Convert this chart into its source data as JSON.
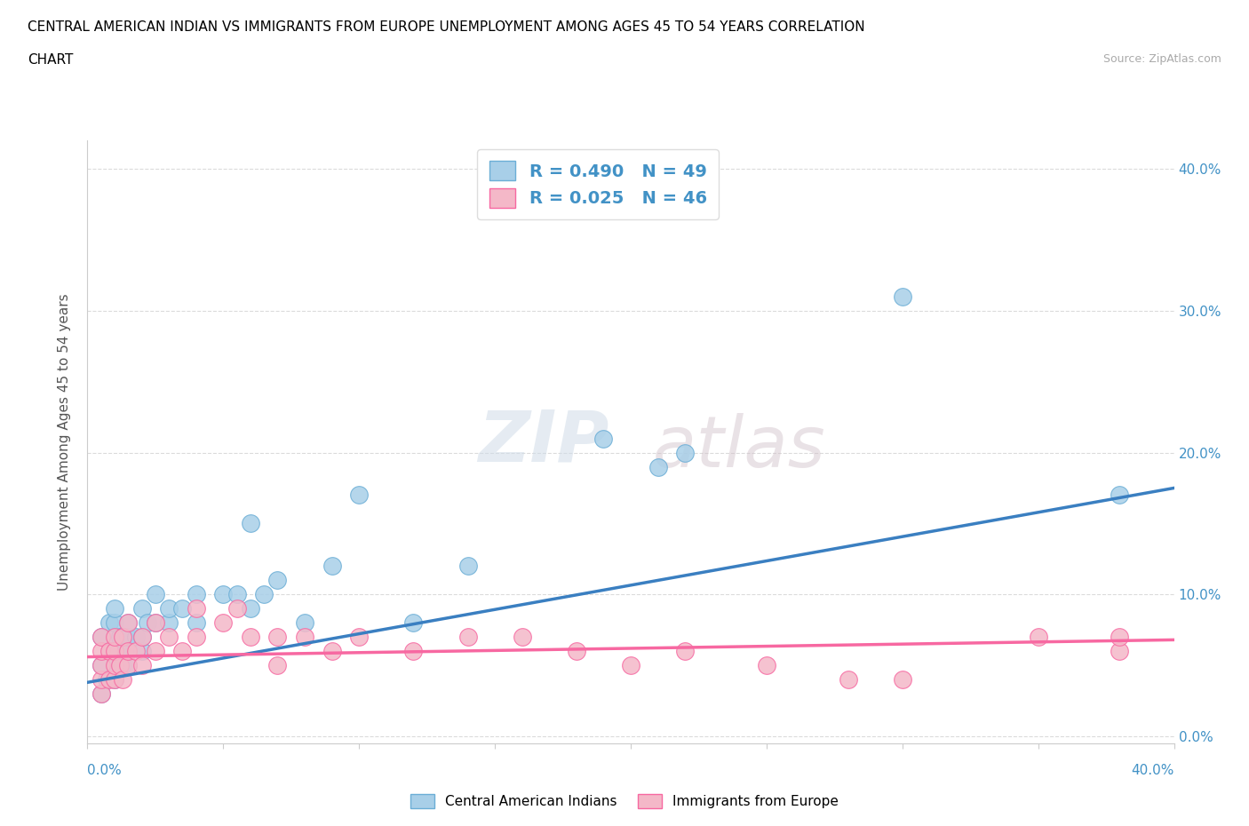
{
  "title_line1": "CENTRAL AMERICAN INDIAN VS IMMIGRANTS FROM EUROPE UNEMPLOYMENT AMONG AGES 45 TO 54 YEARS CORRELATION",
  "title_line2": "CHART",
  "source_text": "Source: ZipAtlas.com",
  "ylabel": "Unemployment Among Ages 45 to 54 years",
  "xlim": [
    0.0,
    0.4
  ],
  "ylim": [
    -0.005,
    0.42
  ],
  "ytick_values": [
    0.0,
    0.1,
    0.2,
    0.3,
    0.4
  ],
  "ytick_labels": [
    "0.0%",
    "10.0%",
    "20.0%",
    "30.0%",
    "40.0%"
  ],
  "watermark_zip": "ZIP",
  "watermark_atlas": "atlas",
  "blue_color": "#a8cfe8",
  "pink_color": "#f4b8c8",
  "blue_edge_color": "#6baed6",
  "pink_edge_color": "#f768a1",
  "blue_line_color": "#3a7fc1",
  "pink_line_color": "#e05a8a",
  "R_blue": 0.49,
  "N_blue": 49,
  "R_pink": 0.025,
  "N_pink": 46,
  "legend_label_blue": "Central American Indians",
  "legend_label_pink": "Immigrants from Europe",
  "blue_scatter_x": [
    0.005,
    0.005,
    0.005,
    0.007,
    0.008,
    0.008,
    0.01,
    0.01,
    0.01,
    0.01,
    0.01,
    0.01,
    0.012,
    0.012,
    0.013,
    0.013,
    0.014,
    0.015,
    0.015,
    0.015,
    0.015,
    0.018,
    0.02,
    0.02,
    0.02,
    0.022,
    0.025,
    0.025,
    0.03,
    0.03,
    0.035,
    0.04,
    0.04,
    0.05,
    0.055,
    0.06,
    0.06,
    0.065,
    0.07,
    0.08,
    0.09,
    0.1,
    0.12,
    0.14,
    0.19,
    0.21,
    0.22,
    0.3,
    0.38
  ],
  "blue_scatter_y": [
    0.03,
    0.05,
    0.07,
    0.04,
    0.06,
    0.08,
    0.04,
    0.05,
    0.06,
    0.07,
    0.08,
    0.09,
    0.05,
    0.07,
    0.05,
    0.07,
    0.06,
    0.05,
    0.06,
    0.07,
    0.08,
    0.07,
    0.06,
    0.07,
    0.09,
    0.08,
    0.08,
    0.1,
    0.08,
    0.09,
    0.09,
    0.08,
    0.1,
    0.1,
    0.1,
    0.09,
    0.15,
    0.1,
    0.11,
    0.08,
    0.12,
    0.17,
    0.08,
    0.12,
    0.21,
    0.19,
    0.2,
    0.31,
    0.17
  ],
  "pink_scatter_x": [
    0.005,
    0.005,
    0.005,
    0.005,
    0.005,
    0.008,
    0.008,
    0.01,
    0.01,
    0.01,
    0.01,
    0.012,
    0.013,
    0.013,
    0.015,
    0.015,
    0.015,
    0.018,
    0.02,
    0.02,
    0.025,
    0.025,
    0.03,
    0.035,
    0.04,
    0.04,
    0.05,
    0.055,
    0.06,
    0.07,
    0.07,
    0.08,
    0.09,
    0.1,
    0.12,
    0.14,
    0.16,
    0.18,
    0.2,
    0.22,
    0.25,
    0.28,
    0.3,
    0.35,
    0.38,
    0.38
  ],
  "pink_scatter_y": [
    0.03,
    0.04,
    0.05,
    0.06,
    0.07,
    0.04,
    0.06,
    0.04,
    0.05,
    0.06,
    0.07,
    0.05,
    0.04,
    0.07,
    0.05,
    0.06,
    0.08,
    0.06,
    0.05,
    0.07,
    0.06,
    0.08,
    0.07,
    0.06,
    0.07,
    0.09,
    0.08,
    0.09,
    0.07,
    0.07,
    0.05,
    0.07,
    0.06,
    0.07,
    0.06,
    0.07,
    0.07,
    0.06,
    0.05,
    0.06,
    0.05,
    0.04,
    0.04,
    0.07,
    0.06,
    0.07
  ],
  "blue_line_x": [
    0.0,
    0.4
  ],
  "blue_line_y": [
    0.038,
    0.175
  ],
  "pink_line_x": [
    0.0,
    0.4
  ],
  "pink_line_y": [
    0.056,
    0.068
  ],
  "background_color": "#ffffff",
  "grid_color": "#cccccc",
  "axis_color": "#4292c6",
  "title_color": "#000000",
  "label_color": "#555555"
}
